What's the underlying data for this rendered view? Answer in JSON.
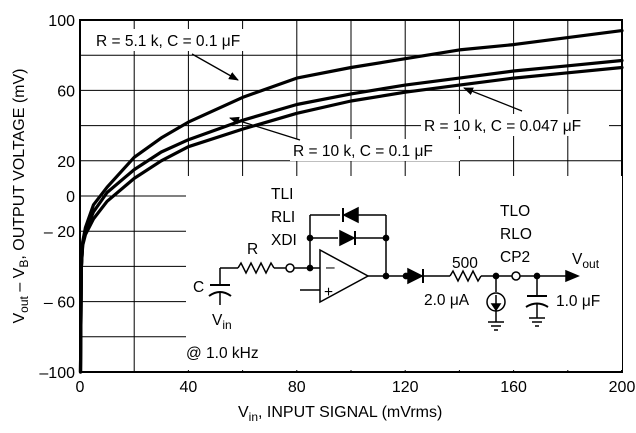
{
  "chart_data": {
    "type": "line",
    "xlabel": "V_in, INPUT SIGNAL (mVrms)",
    "xlabel_main": "V",
    "xlabel_sub": "in",
    "xlabel_rest": ", INPUT SIGNAL (mVrms)",
    "ylabel_parts": {
      "v1": "V",
      "s1": "out",
      "minus": " – V",
      "s2": "B",
      "rest": ", OUTPUT VOLTAGE (mV)"
    },
    "xlim": [
      0,
      200
    ],
    "ylim": [
      -100,
      100
    ],
    "x_ticks": [
      {
        "value": 0,
        "label": "0"
      },
      {
        "value": 40,
        "label": "40"
      },
      {
        "value": 80,
        "label": "80"
      },
      {
        "value": 120,
        "label": "120"
      },
      {
        "value": 160,
        "label": "160"
      },
      {
        "value": 200,
        "label": "200"
      }
    ],
    "y_ticks": [
      {
        "value": 100,
        "label": "100"
      },
      {
        "value": 60,
        "label": "60"
      },
      {
        "value": 20,
        "label": "20"
      },
      {
        "value": 0,
        "label": "0"
      },
      {
        "value": -20,
        "label": "– 20"
      },
      {
        "value": -60,
        "label": "– 60"
      },
      {
        "value": -100,
        "label": "–100"
      }
    ],
    "grid": true,
    "series": [
      {
        "name": "R = 5.1 k, C = 0.1 μF",
        "x": [
          0.2,
          0.5,
          1,
          2,
          5,
          10,
          20,
          30,
          40,
          60,
          80,
          100,
          120,
          140,
          160,
          180,
          200
        ],
        "y": [
          -100,
          -40,
          -26,
          -18,
          -5,
          5,
          22,
          33,
          42,
          56,
          67,
          73,
          78,
          83,
          86,
          90,
          94
        ]
      },
      {
        "name": "R = 10 k, C = 0.047 μF",
        "x": [
          0.2,
          0.5,
          1,
          2,
          5,
          10,
          20,
          30,
          40,
          60,
          80,
          100,
          120,
          140,
          160,
          180,
          200
        ],
        "y": [
          -100,
          -40,
          -27,
          -20,
          -9,
          2,
          15,
          25,
          32,
          43,
          52,
          58,
          63,
          67,
          71,
          74,
          77
        ]
      },
      {
        "name": "R = 10 k, C = 0.1 μF",
        "x": [
          0.2,
          0.5,
          1,
          2,
          5,
          10,
          20,
          30,
          40,
          60,
          80,
          100,
          120,
          140,
          160,
          180,
          200
        ],
        "y": [
          -100,
          -40,
          -28,
          -22,
          -13,
          -3,
          10,
          20,
          28,
          38,
          47,
          54,
          59,
          63,
          67,
          70,
          73
        ]
      }
    ],
    "annotations": [
      "R = 5.1 k, C = 0.1 μF",
      "R = 10 k, C = 0.047 μF",
      "R = 10 k, C = 0.1 μF"
    ]
  },
  "schematic": {
    "pin_labels": [
      "TLI",
      "RLI",
      "XDI"
    ],
    "out_pins": [
      "TLO",
      "RLO",
      "CP2"
    ],
    "r_label": "R",
    "c_label": "C",
    "vin_main": "V",
    "vin_sub": "in",
    "freq": "@ 1.0 kHz",
    "r500": "500",
    "current": "2.0 μA",
    "cap_out": "1.0 μF",
    "vout_main": "V",
    "vout_sub": "out",
    "minus": "–",
    "plus": "+"
  }
}
